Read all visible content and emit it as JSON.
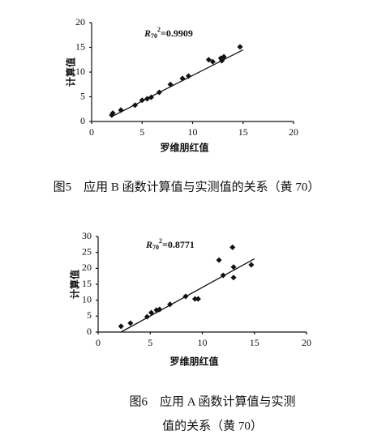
{
  "chart_data": [
    {
      "type": "scatter",
      "title": null,
      "caption": [
        "图5　应用 B 函数计算值与实测值的关系（黄 70）"
      ],
      "x_label": "罗维朋红值",
      "y_label": "计算值",
      "annotation": {
        "base": "R",
        "sub": "70",
        "sup": "2",
        "text": "=0.9909"
      },
      "xlim": [
        0,
        20
      ],
      "xticks": [
        0,
        5,
        10,
        15,
        20
      ],
      "ylim": [
        0,
        20
      ],
      "yticks": [
        0,
        5,
        10,
        15,
        20
      ],
      "color": "#111111",
      "x": [
        2.0,
        2.1,
        2.9,
        4.3,
        5.0,
        5.5,
        5.9,
        6.7,
        7.8,
        9.0,
        9.6,
        11.6,
        12.0,
        12.8,
        13.1,
        12.9,
        14.7
      ],
      "values": [
        1.3,
        1.7,
        2.3,
        3.3,
        4.3,
        4.6,
        4.9,
        5.9,
        7.5,
        8.7,
        9.2,
        12.5,
        12.1,
        12.8,
        13.1,
        12.3,
        15.1
      ],
      "fit_line": {
        "x": [
          2.0,
          15.0
        ],
        "y": [
          1.0,
          14.5
        ]
      }
    },
    {
      "type": "scatter",
      "title": null,
      "caption": [
        "图6　应用 A 函数计算值与实测",
        "值的关系（黄 70）"
      ],
      "x_label": "罗维朋红值",
      "y_label": "计算值",
      "annotation": {
        "base": "R",
        "sub": "70",
        "sup": "2",
        "text": "=0.8771"
      },
      "xlim": [
        0,
        20
      ],
      "xticks": [
        0,
        5,
        10,
        15,
        20
      ],
      "ylim": [
        0,
        30
      ],
      "yticks": [
        0,
        5,
        10,
        15,
        20,
        25,
        30
      ],
      "color": "#111111",
      "x": [
        2.2,
        3.1,
        4.7,
        5.1,
        5.6,
        5.9,
        6.9,
        8.4,
        9.3,
        9.6,
        11.6,
        12.0,
        12.9,
        13.0,
        13.0,
        14.7
      ],
      "values": [
        1.8,
        2.8,
        4.8,
        6.1,
        6.9,
        7.1,
        8.7,
        11.2,
        10.4,
        10.4,
        22.6,
        17.8,
        26.6,
        20.4,
        17.1,
        21.1
      ],
      "fit_line": {
        "x": [
          2.2,
          15.0
        ],
        "y": [
          0.0,
          23.0
        ]
      }
    }
  ]
}
